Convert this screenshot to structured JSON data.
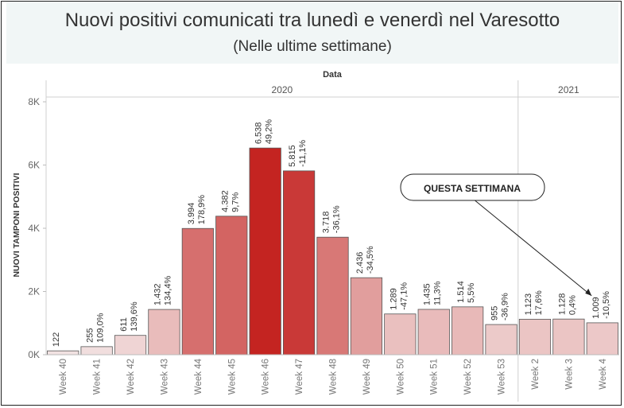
{
  "title": "Nuovi positivi comunicati tra lunedì e venerdì nel Varesotto",
  "subtitle": "(Nelle ultime settimane)",
  "chart_data": {
    "type": "bar",
    "title": "Nuovi positivi comunicati tra lunedì e venerdì nel Varesotto",
    "subtitle": "(Nelle ultime settimane)",
    "xlabel": "Data",
    "ylabel": "NUOVI TAMPONI POSITIVI",
    "ylim": [
      0,
      8000
    ],
    "yticks": [
      {
        "value": 0,
        "label": "0K"
      },
      {
        "value": 2000,
        "label": "2K"
      },
      {
        "value": 4000,
        "label": "4K"
      },
      {
        "value": 6000,
        "label": "6K"
      },
      {
        "value": 8000,
        "label": "8K"
      }
    ],
    "groups": [
      {
        "label": "2020",
        "count": 14
      },
      {
        "label": "2021",
        "count": 3
      }
    ],
    "categories": [
      "Week 40",
      "Week 41",
      "Week 42",
      "Week 43",
      "Week 44",
      "Week 45",
      "Week 46",
      "Week 47",
      "Week 48",
      "Week 49",
      "Week 50",
      "Week 51",
      "Week 52",
      "Week 53",
      "Week 2",
      "Week 3",
      "Week 4"
    ],
    "values": [
      122,
      255,
      611,
      1432,
      3994,
      4382,
      6538,
      5815,
      3718,
      2436,
      1289,
      1435,
      1514,
      955,
      1123,
      1128,
      1009
    ],
    "value_labels": [
      "122",
      "255",
      "611",
      "1.432",
      "3.994",
      "4.382",
      "6.538",
      "5.815",
      "3.718",
      "2.436",
      "1.289",
      "1.435",
      "1.514",
      "955",
      "1.123",
      "1.128",
      "1.009"
    ],
    "pct_change_labels": [
      "",
      "109,0%",
      "139,6%",
      "134,4%",
      "178,9%",
      "9,7%",
      "49,2%",
      "-11,1%",
      "-36,1%",
      "-34,5%",
      "-47,1%",
      "11,3%",
      "5,5%",
      "-36,9%",
      "17,6%",
      "0,4%",
      "-10,5%"
    ],
    "pct_change": [
      null,
      109.0,
      139.6,
      134.4,
      178.9,
      9.7,
      49.2,
      -11.1,
      -36.1,
      -34.5,
      -47.1,
      11.3,
      5.5,
      -36.9,
      17.6,
      0.4,
      -10.5
    ],
    "color_low": "#f3e6e6",
    "color_high": "#c42421",
    "annotation": {
      "text": "QUESTA SETTIMANA",
      "target_category": "Week 4"
    },
    "grid": false
  }
}
